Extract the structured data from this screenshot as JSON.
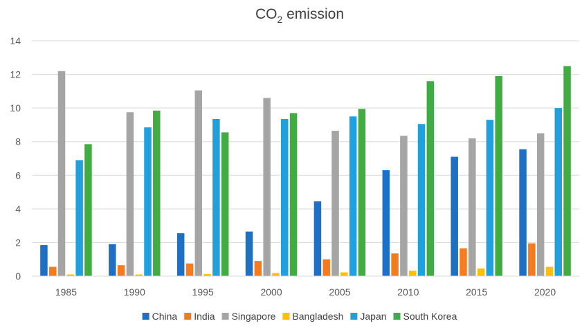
{
  "chart_data": {
    "type": "bar",
    "title": "CO",
    "title_subscript": "2",
    "title_suffix": " emission",
    "xlabel": "",
    "ylabel": "",
    "ylim": [
      0,
      14
    ],
    "yticks": [
      0,
      2,
      4,
      6,
      8,
      10,
      12,
      14
    ],
    "grid": true,
    "legend_position": "bottom",
    "categories": [
      "1985",
      "1990",
      "1995",
      "2000",
      "2005",
      "2010",
      "2015",
      "2020"
    ],
    "series": [
      {
        "name": "China",
        "color": "#1f6fc5",
        "values": [
          1.85,
          1.9,
          2.55,
          2.65,
          4.45,
          6.3,
          7.1,
          7.55
        ]
      },
      {
        "name": "India",
        "color": "#f47b20",
        "values": [
          0.55,
          0.65,
          0.75,
          0.9,
          1.0,
          1.35,
          1.65,
          1.95
        ]
      },
      {
        "name": "Singapore",
        "color": "#a5a5a5",
        "values": [
          12.2,
          9.75,
          11.05,
          10.6,
          8.65,
          8.35,
          8.2,
          8.5
        ]
      },
      {
        "name": "Bangladesh",
        "color": "#ffc000",
        "values": [
          0.1,
          0.1,
          0.12,
          0.18,
          0.22,
          0.32,
          0.45,
          0.55
        ]
      },
      {
        "name": "Japan",
        "color": "#21a0db",
        "values": [
          6.9,
          8.85,
          9.35,
          9.35,
          9.5,
          9.05,
          9.3,
          10.0
        ]
      },
      {
        "name": "South Korea",
        "color": "#43ab43",
        "values": [
          7.85,
          9.85,
          8.55,
          9.7,
          9.95,
          11.6,
          11.9,
          12.5
        ]
      }
    ]
  }
}
